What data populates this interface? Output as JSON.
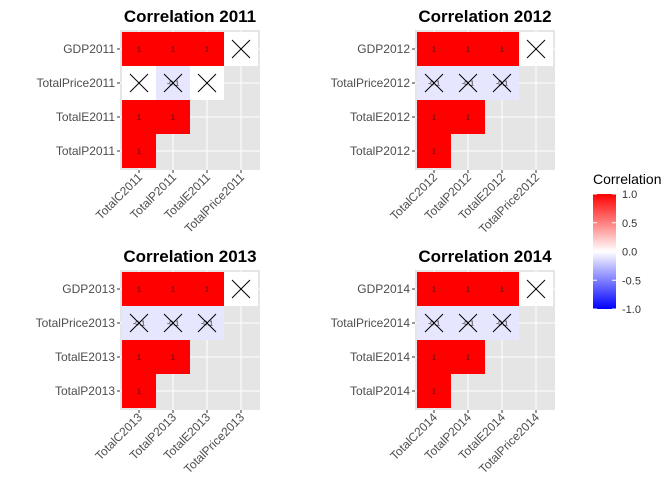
{
  "colors": {
    "panel_background": "#e5e5e5",
    "grid": "#ffffff",
    "scale_high": "#ff0000",
    "scale_mid": "#ffffff",
    "scale_low": "#0000ff",
    "nonsignificant_mark": "#000000"
  },
  "legend": {
    "title": "Correlation",
    "ticks": [
      "1.0",
      "0.5",
      "0.0",
      "-0.5",
      "-1.0"
    ],
    "tick_values": [
      1.0,
      0.5,
      0.0,
      -0.5,
      -1.0
    ],
    "range": [
      -1,
      1
    ]
  },
  "chart_data": [
    {
      "type": "heatmap",
      "title": "Correlation 2011",
      "x_categories": [
        "TotalC2011",
        "TotalP2011",
        "TotalE2011",
        "TotalPrice2011"
      ],
      "y_categories": [
        "GDP2011",
        "TotalPrice2011",
        "TotalE2011",
        "TotalP2011"
      ],
      "cells": [
        {
          "x": "TotalC2011",
          "y": "GDP2011",
          "value": 1,
          "label": "1",
          "crossed": false
        },
        {
          "x": "TotalP2011",
          "y": "GDP2011",
          "value": 1,
          "label": "1",
          "crossed": false
        },
        {
          "x": "TotalE2011",
          "y": "GDP2011",
          "value": 1,
          "label": "1",
          "crossed": false
        },
        {
          "x": "TotalPrice2011",
          "y": "GDP2011",
          "value": 0,
          "label": "",
          "crossed": true
        },
        {
          "x": "TotalC2011",
          "y": "TotalPrice2011",
          "value": 0,
          "label": "",
          "crossed": true
        },
        {
          "x": "TotalP2011",
          "y": "TotalPrice2011",
          "value": -0.1,
          "label": "-0.1",
          "crossed": true
        },
        {
          "x": "TotalE2011",
          "y": "TotalPrice2011",
          "value": 0,
          "label": "",
          "crossed": true
        },
        {
          "x": "TotalC2011",
          "y": "TotalE2011",
          "value": 1,
          "label": "1",
          "crossed": false
        },
        {
          "x": "TotalP2011",
          "y": "TotalE2011",
          "value": 1,
          "label": "1",
          "crossed": false
        },
        {
          "x": "TotalC2011",
          "y": "TotalP2011",
          "value": 1,
          "label": "1",
          "crossed": false
        }
      ]
    },
    {
      "type": "heatmap",
      "title": "Correlation 2012",
      "x_categories": [
        "TotalC2012",
        "TotalP2012",
        "TotalE2012",
        "TotalPrice2012"
      ],
      "y_categories": [
        "GDP2012",
        "TotalPrice2012",
        "TotalE2012",
        "TotalP2012"
      ],
      "cells": [
        {
          "x": "TotalC2012",
          "y": "GDP2012",
          "value": 1,
          "label": "1",
          "crossed": false
        },
        {
          "x": "TotalP2012",
          "y": "GDP2012",
          "value": 1,
          "label": "1",
          "crossed": false
        },
        {
          "x": "TotalE2012",
          "y": "GDP2012",
          "value": 1,
          "label": "1",
          "crossed": false
        },
        {
          "x": "TotalPrice2012",
          "y": "GDP2012",
          "value": 0,
          "label": "",
          "crossed": true
        },
        {
          "x": "TotalC2012",
          "y": "TotalPrice2012",
          "value": -0.1,
          "label": "-0.1",
          "crossed": true
        },
        {
          "x": "TotalP2012",
          "y": "TotalPrice2012",
          "value": -0.1,
          "label": "-0.1",
          "crossed": true
        },
        {
          "x": "TotalE2012",
          "y": "TotalPrice2012",
          "value": -0.1,
          "label": "-0.1",
          "crossed": true
        },
        {
          "x": "TotalC2012",
          "y": "TotalE2012",
          "value": 1,
          "label": "1",
          "crossed": false
        },
        {
          "x": "TotalP2012",
          "y": "TotalE2012",
          "value": 1,
          "label": "1",
          "crossed": false
        },
        {
          "x": "TotalC2012",
          "y": "TotalP2012",
          "value": 1,
          "label": "1",
          "crossed": false
        }
      ]
    },
    {
      "type": "heatmap",
      "title": "Correlation 2013",
      "x_categories": [
        "TotalC2013",
        "TotalP2013",
        "TotalE2013",
        "TotalPrice2013"
      ],
      "y_categories": [
        "GDP2013",
        "TotalPrice2013",
        "TotalE2013",
        "TotalP2013"
      ],
      "cells": [
        {
          "x": "TotalC2013",
          "y": "GDP2013",
          "value": 1,
          "label": "1",
          "crossed": false
        },
        {
          "x": "TotalP2013",
          "y": "GDP2013",
          "value": 1,
          "label": "1",
          "crossed": false
        },
        {
          "x": "TotalE2013",
          "y": "GDP2013",
          "value": 1,
          "label": "1",
          "crossed": false
        },
        {
          "x": "TotalPrice2013",
          "y": "GDP2013",
          "value": 0,
          "label": "",
          "crossed": true
        },
        {
          "x": "TotalC2013",
          "y": "TotalPrice2013",
          "value": -0.1,
          "label": "-0.1",
          "crossed": true
        },
        {
          "x": "TotalP2013",
          "y": "TotalPrice2013",
          "value": -0.1,
          "label": "-0.1",
          "crossed": true
        },
        {
          "x": "TotalE2013",
          "y": "TotalPrice2013",
          "value": -0.1,
          "label": "-0.1",
          "crossed": true
        },
        {
          "x": "TotalC2013",
          "y": "TotalE2013",
          "value": 1,
          "label": "1",
          "crossed": false
        },
        {
          "x": "TotalP2013",
          "y": "TotalE2013",
          "value": 1,
          "label": "1",
          "crossed": false
        },
        {
          "x": "TotalC2013",
          "y": "TotalP2013",
          "value": 1,
          "label": "1",
          "crossed": false
        }
      ]
    },
    {
      "type": "heatmap",
      "title": "Correlation 2014",
      "x_categories": [
        "TotalC2014",
        "TotalP2014",
        "TotalE2014",
        "TotalPrice2014"
      ],
      "y_categories": [
        "GDP2014",
        "TotalPrice2014",
        "TotalE2014",
        "TotalP2014"
      ],
      "cells": [
        {
          "x": "TotalC2014",
          "y": "GDP2014",
          "value": 1,
          "label": "1",
          "crossed": false
        },
        {
          "x": "TotalP2014",
          "y": "GDP2014",
          "value": 1,
          "label": "1",
          "crossed": false
        },
        {
          "x": "TotalE2014",
          "y": "GDP2014",
          "value": 1,
          "label": "1",
          "crossed": false
        },
        {
          "x": "TotalPrice2014",
          "y": "GDP2014",
          "value": 0,
          "label": "",
          "crossed": true
        },
        {
          "x": "TotalC2014",
          "y": "TotalPrice2014",
          "value": -0.1,
          "label": "-0.1",
          "crossed": true
        },
        {
          "x": "TotalP2014",
          "y": "TotalPrice2014",
          "value": -0.1,
          "label": "-0.1",
          "crossed": true
        },
        {
          "x": "TotalE2014",
          "y": "TotalPrice2014",
          "value": -0.1,
          "label": "-0.1",
          "crossed": true
        },
        {
          "x": "TotalC2014",
          "y": "TotalE2014",
          "value": 1,
          "label": "1",
          "crossed": false
        },
        {
          "x": "TotalP2014",
          "y": "TotalE2014",
          "value": 1,
          "label": "1",
          "crossed": false
        },
        {
          "x": "TotalC2014",
          "y": "TotalP2014",
          "value": 1,
          "label": "1",
          "crossed": false
        }
      ]
    }
  ]
}
